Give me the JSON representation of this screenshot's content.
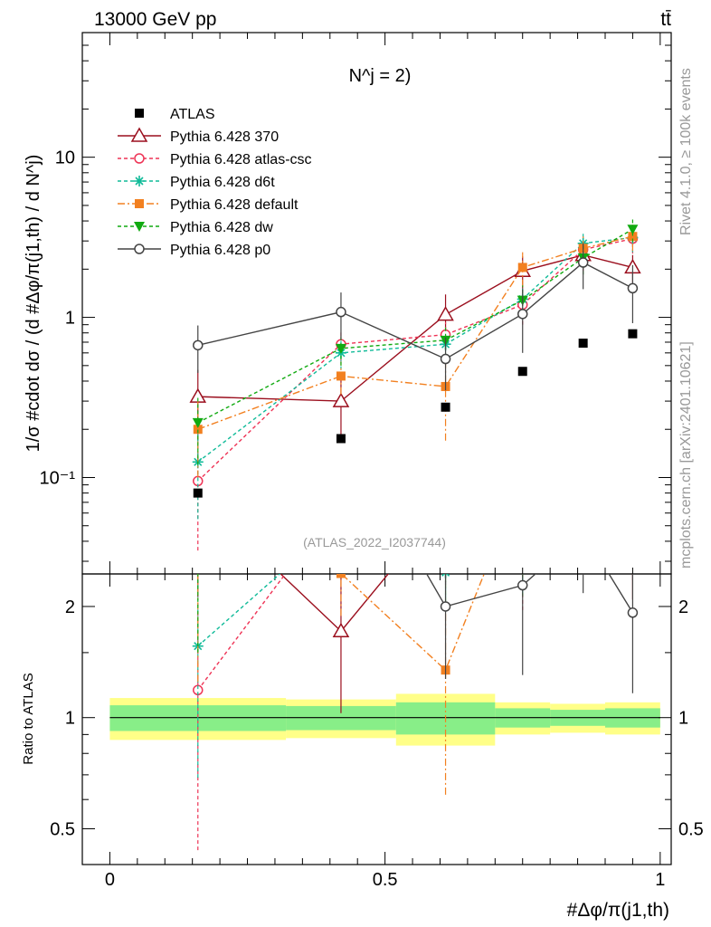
{
  "header": {
    "energy_label": "13000 GeV pp",
    "process_label": "tt̄"
  },
  "side_labels": {
    "rivet": "Rivet 4.1.0, ≥ 100k events",
    "mcplots": "mcplots.cern.ch [arXiv:2401.10621]"
  },
  "chart_data": {
    "type": "scatter",
    "title": "N^j = 2)",
    "analysis_id": "(ATLAS_2022_I2037744)",
    "xlabel": "#Δφ/π(j1,th)",
    "ylabel": "1/σ #cdot dσ / (d #Δφ/π(j1,th) / d N^j)",
    "xlim": [
      -0.05,
      1.02
    ],
    "ylim": [
      0.025,
      60
    ],
    "yscale": "log",
    "main_ticks": [
      {
        "v": 0.1,
        "label": "10⁻¹"
      },
      {
        "v": 1,
        "label": "1"
      },
      {
        "v": 10,
        "label": "10"
      }
    ],
    "x_ticks": [
      {
        "v": 0,
        "label": "0"
      },
      {
        "v": 0.5,
        "label": "0.5"
      },
      {
        "v": 1,
        "label": "1"
      }
    ],
    "x": [
      0.16,
      0.42,
      0.61,
      0.75,
      0.86,
      0.95
    ],
    "bin_edges": [
      0.0,
      0.32,
      0.52,
      0.7,
      0.8,
      0.9,
      1.0
    ],
    "data": {
      "name": "ATLAS",
      "values": [
        0.08,
        0.175,
        0.275,
        0.46,
        0.69,
        0.79
      ],
      "band_inner": [
        0.08,
        0.075,
        0.1,
        0.06,
        0.05,
        0.06
      ],
      "band_outer": [
        0.13,
        0.12,
        0.16,
        0.1,
        0.09,
        0.1
      ]
    },
    "series": [
      {
        "name": "Pythia 6.428 370",
        "color": "#9b0f1e",
        "marker": "triangle-open",
        "dash": "",
        "values": [
          0.32,
          0.3,
          1.04,
          1.95,
          2.45,
          2.05
        ],
        "err": [
          0.15,
          0.12,
          0.35,
          0.45,
          0.5,
          0.4
        ]
      },
      {
        "name": "Pythia 6.428 atlas-csc",
        "color": "#ee3355",
        "marker": "circle-open",
        "dash": "4,3",
        "values": [
          0.095,
          0.68,
          0.78,
          1.2,
          2.65,
          3.1
        ],
        "err": [
          0.06,
          0.15,
          0.15,
          0.3,
          0.5,
          0.6
        ]
      },
      {
        "name": "Pythia 6.428 d6t",
        "color": "#11bb99",
        "marker": "star",
        "dash": "4,3",
        "values": [
          0.125,
          0.6,
          0.68,
          1.3,
          2.9,
          3.15
        ],
        "err": [
          0.07,
          0.13,
          0.12,
          0.3,
          0.5,
          0.6
        ]
      },
      {
        "name": "Pythia 6.428 default",
        "color": "#f28020",
        "marker": "square",
        "dash": "8,3,2,3",
        "values": [
          0.2,
          0.43,
          0.37,
          2.05,
          2.7,
          3.2
        ],
        "err": [
          0.1,
          0.1,
          0.2,
          0.5,
          0.5,
          0.6
        ]
      },
      {
        "name": "Pythia 6.428 dw",
        "color": "#11aa11",
        "marker": "triangle-down",
        "dash": "4,3",
        "values": [
          0.22,
          0.64,
          0.72,
          1.28,
          2.35,
          3.55
        ],
        "err": [
          0.1,
          0.14,
          0.15,
          0.3,
          0.5,
          0.6
        ]
      },
      {
        "name": "Pythia 6.428 p0",
        "color": "#444444",
        "marker": "circle-open",
        "dash": "",
        "values": [
          0.67,
          1.08,
          0.55,
          1.05,
          2.2,
          1.52
        ],
        "err": [
          0.22,
          0.35,
          0.2,
          0.45,
          0.7,
          0.6
        ]
      }
    ],
    "ratio": {
      "ylabel": "Ratio to ATLAS",
      "ylim": [
        0.4,
        2.45
      ],
      "ticks": [
        {
          "v": 0.5,
          "label": "0.5"
        },
        {
          "v": 1,
          "label": "1"
        },
        {
          "v": 2,
          "label": "2"
        }
      ]
    }
  }
}
